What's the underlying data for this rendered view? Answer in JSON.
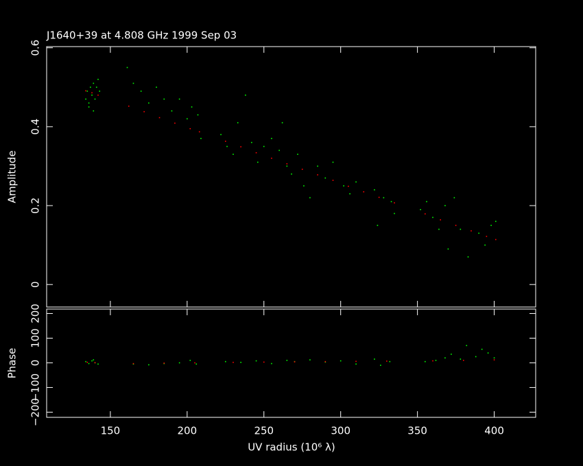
{
  "chart_data": [
    {
      "type": "scatter",
      "title": "J1640+39 at 4.808 GHz 1999 Sep 03",
      "y_label": "Amplitude",
      "xlim": [
        108.5,
        427
      ],
      "ylim": [
        -0.057,
        0.603
      ],
      "yticks": [
        0,
        0.2,
        0.4,
        0.6
      ],
      "series": [
        {
          "color": "#00ff00",
          "x": [
            134,
            135,
            136,
            137,
            138,
            139,
            140,
            141,
            142,
            136,
            139,
            143,
            161,
            165,
            170,
            175,
            180,
            185,
            190,
            195,
            200,
            203,
            207,
            209,
            222,
            226,
            230,
            233,
            238,
            242,
            246,
            250,
            255,
            260,
            262,
            265,
            268,
            272,
            276,
            280,
            285,
            290,
            295,
            302,
            306,
            310,
            322,
            324,
            328,
            333,
            335,
            352,
            356,
            360,
            364,
            368,
            370,
            374,
            378,
            383,
            390,
            394,
            398,
            401
          ],
          "values": [
            0.47,
            0.49,
            0.46,
            0.5,
            0.48,
            0.51,
            0.47,
            0.5,
            0.52,
            0.45,
            0.44,
            0.49,
            0.55,
            0.51,
            0.49,
            0.46,
            0.5,
            0.47,
            0.44,
            0.47,
            0.42,
            0.45,
            0.43,
            0.37,
            0.38,
            0.35,
            0.33,
            0.41,
            0.48,
            0.36,
            0.31,
            0.35,
            0.37,
            0.34,
            0.41,
            0.3,
            0.28,
            0.33,
            0.25,
            0.22,
            0.3,
            0.27,
            0.31,
            0.25,
            0.23,
            0.26,
            0.24,
            0.15,
            0.22,
            0.21,
            0.18,
            0.19,
            0.21,
            0.17,
            0.14,
            0.2,
            0.09,
            0.22,
            0.14,
            0.07,
            0.13,
            0.1,
            0.15,
            0.16
          ]
        },
        {
          "color": "#ff0000",
          "x": [
            134,
            138,
            142,
            162,
            172,
            182,
            192,
            202,
            208,
            225,
            235,
            245,
            255,
            265,
            275,
            285,
            295,
            305,
            315,
            325,
            335,
            355,
            365,
            375,
            385,
            395,
            401
          ],
          "values": [
            0.491,
            0.486,
            0.48,
            0.452,
            0.438,
            0.423,
            0.409,
            0.395,
            0.387,
            0.363,
            0.349,
            0.334,
            0.32,
            0.306,
            0.292,
            0.278,
            0.264,
            0.249,
            0.235,
            0.221,
            0.207,
            0.179,
            0.164,
            0.15,
            0.136,
            0.122,
            0.114
          ]
        }
      ]
    },
    {
      "type": "scatter",
      "x_label": "UV radius  (10⁶ λ)",
      "y_label": "Phase",
      "xlim": [
        108.5,
        427
      ],
      "xticks": [
        150,
        200,
        250,
        300,
        350,
        400
      ],
      "ylim": [
        -221,
        218
      ],
      "yticks": [
        {
          "value": -200,
          "label": "−200"
        },
        {
          "value": -100,
          "label": "−100"
        },
        0,
        100,
        200
      ],
      "series": [
        {
          "color": "#00ff00",
          "x": [
            134,
            136,
            138,
            140,
            142,
            139,
            165,
            175,
            185,
            195,
            202,
            206,
            225,
            235,
            245,
            255,
            265,
            270,
            280,
            290,
            300,
            310,
            322,
            326,
            332,
            355,
            362,
            368,
            372,
            378,
            382,
            388,
            392,
            396,
            400
          ],
          "values": [
            5,
            -3,
            8,
            0,
            -5,
            12,
            -5,
            -8,
            -3,
            0,
            10,
            -5,
            5,
            2,
            8,
            -3,
            10,
            5,
            12,
            3,
            8,
            -5,
            15,
            -10,
            5,
            5,
            10,
            20,
            35,
            15,
            70,
            25,
            55,
            40,
            20
          ]
        },
        {
          "color": "#ff0000",
          "x": [
            135,
            140,
            165,
            185,
            205,
            230,
            250,
            270,
            290,
            310,
            330,
            360,
            380,
            400
          ],
          "values": [
            2,
            1,
            -3,
            -1,
            0,
            2,
            3,
            4,
            5,
            6,
            7,
            8,
            10,
            12
          ]
        }
      ]
    }
  ]
}
